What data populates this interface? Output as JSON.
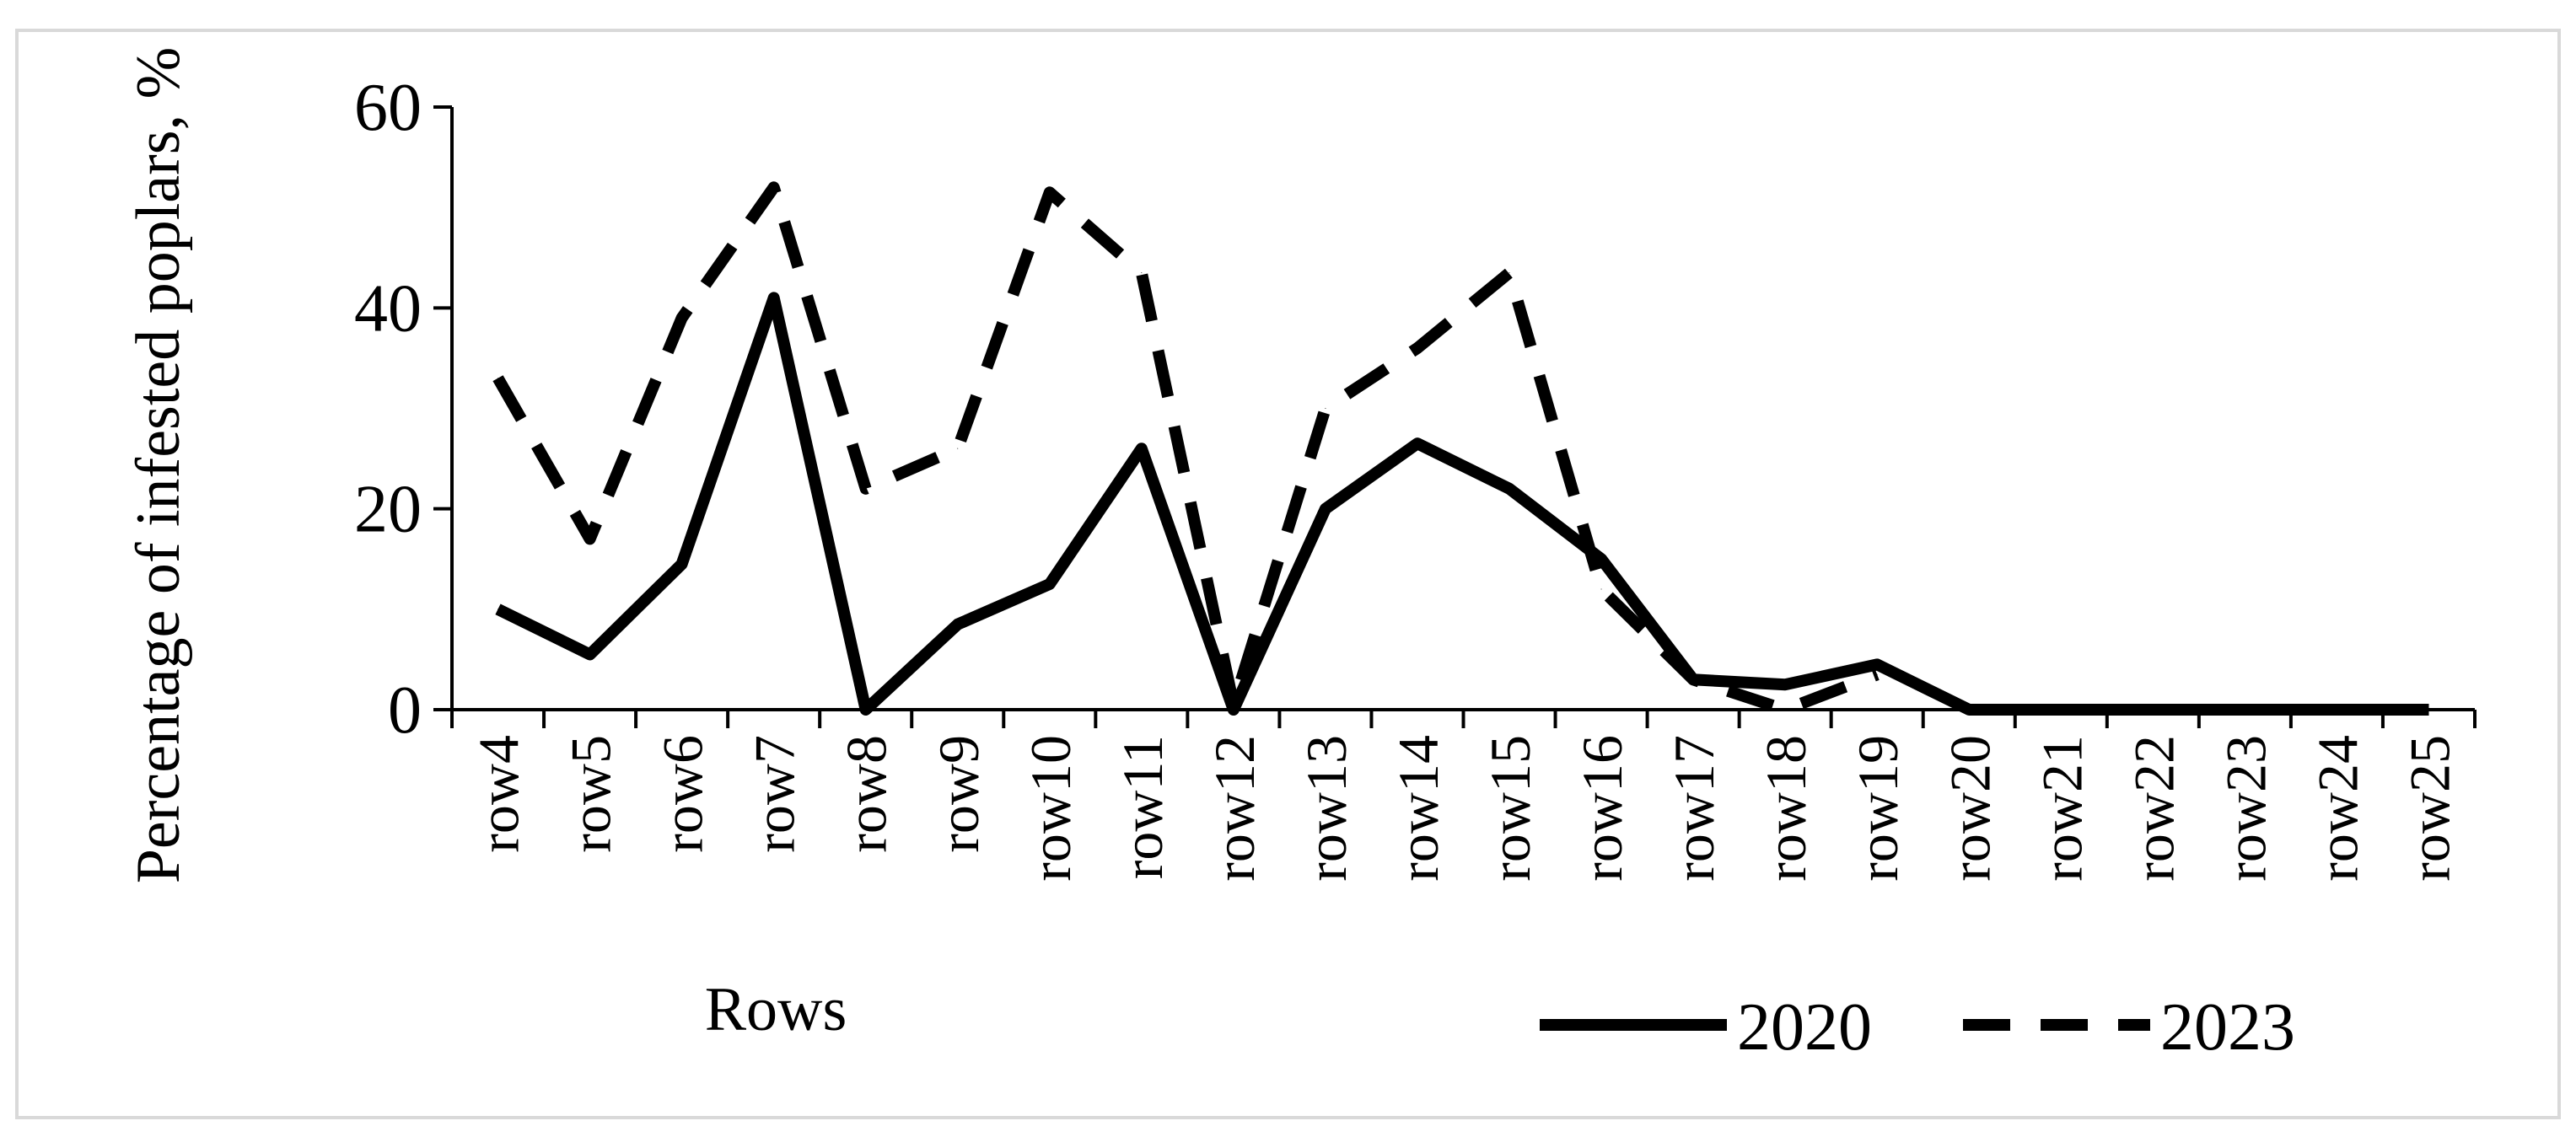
{
  "chart_data": {
    "type": "line",
    "title": "",
    "xlabel": "Rows",
    "ylabel": "Percentage of infested poplars, %",
    "ylim": [
      0,
      60
    ],
    "yticks": [
      "0",
      "20",
      "40",
      "60"
    ],
    "grid": false,
    "legend_position": "bottom-right",
    "categories": [
      "row4",
      "row5",
      "row6",
      "row7",
      "row8",
      "row9",
      "row10",
      "row11",
      "row12",
      "row13",
      "row14",
      "row15",
      "row16",
      "row17",
      "row18",
      "row19",
      "row20",
      "row21",
      "row22",
      "row23",
      "row24",
      "row25"
    ],
    "series": [
      {
        "name": "2020",
        "style": "solid",
        "color": "#000000",
        "values": [
          10,
          5.5,
          14.5,
          41,
          0,
          8.5,
          12.5,
          26,
          0,
          20,
          26.5,
          22,
          15,
          3,
          2.5,
          4.5,
          0,
          0,
          0,
          0,
          0,
          0
        ]
      },
      {
        "name": "2023",
        "style": "dashed",
        "color": "#000000",
        "values": [
          33,
          17,
          39,
          52,
          22,
          26,
          51.5,
          43.5,
          0.5,
          30,
          36,
          43.5,
          12,
          3,
          0,
          3.5,
          null,
          null,
          null,
          null,
          null,
          null
        ]
      }
    ]
  }
}
